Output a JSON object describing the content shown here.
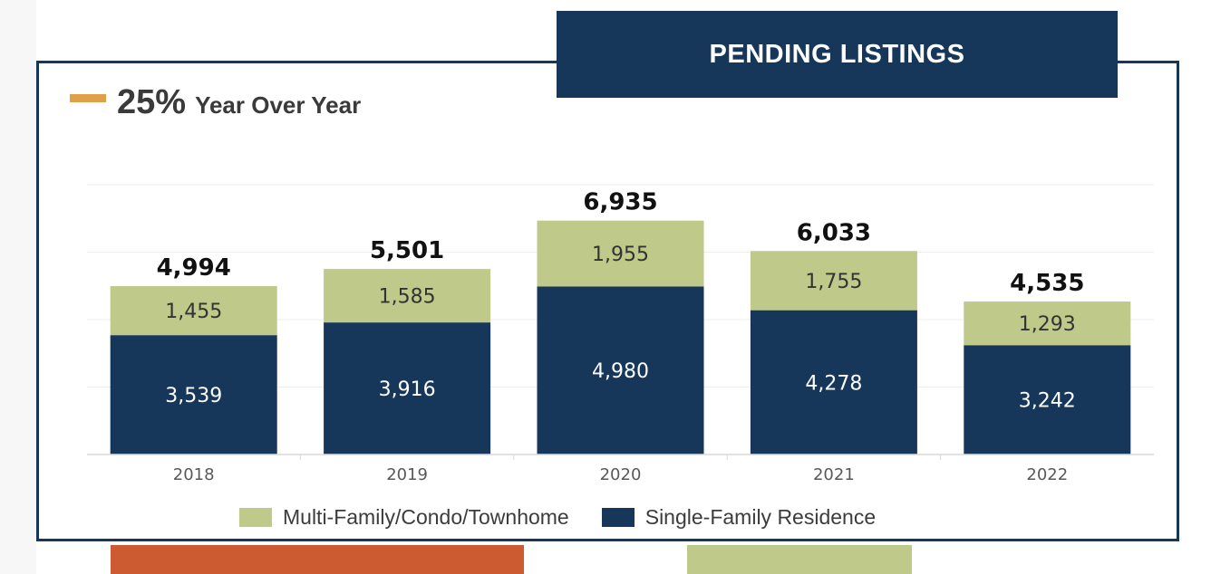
{
  "header": {
    "title": "PENDING LISTINGS"
  },
  "yoy": {
    "value": "25%",
    "label": "Year Over Year",
    "indicator_color": "#e0a049"
  },
  "colors": {
    "navy": "#17375a",
    "green": "#bfc98a",
    "orange": "#cc5b31"
  },
  "chart_data": {
    "type": "bar",
    "stacked": true,
    "categories": [
      "2018",
      "2019",
      "2020",
      "2021",
      "2022"
    ],
    "series": [
      {
        "name": "Single-Family Residence",
        "values": [
          3539,
          3916,
          4980,
          4278,
          3242
        ],
        "labels": [
          "3,539",
          "3,916",
          "4,980",
          "4,278",
          "3,242"
        ],
        "color": "#17375a"
      },
      {
        "name": "Multi-Family/Condo/Townhome",
        "values": [
          1455,
          1585,
          1955,
          1755,
          1293
        ],
        "labels": [
          "1,455",
          "1,585",
          "1,955",
          "1,755",
          "1,293"
        ],
        "color": "#bfc98a"
      }
    ],
    "totals": [
      4994,
      5501,
      6935,
      6033,
      4535
    ],
    "total_labels": [
      "4,994",
      "5,501",
      "6,935",
      "6,033",
      "4,535"
    ],
    "ylim": [
      0,
      8000
    ],
    "grid": true,
    "legend": {
      "position": "bottom",
      "items": [
        {
          "label": "Multi-Family/Condo/Townhome",
          "color": "#bfc98a"
        },
        {
          "label": "Single-Family Residence",
          "color": "#17375a"
        }
      ]
    }
  }
}
